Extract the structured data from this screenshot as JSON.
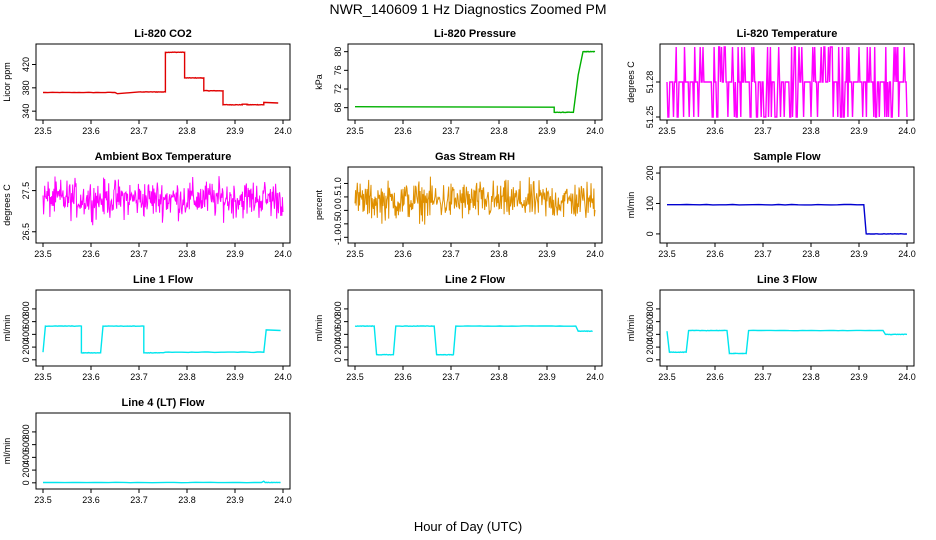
{
  "figure": {
    "title": "NWR_140609  1 Hz Diagnostics Zoomed PM",
    "xlabel": "Hour of Day (UTC)"
  },
  "chart_data": [
    {
      "type": "line",
      "title": "Li-820 CO2",
      "ylabel": "Licor ppm",
      "xlim": [
        23.5,
        24.0
      ],
      "ylim": [
        330,
        450
      ],
      "xticks": [
        23.5,
        23.6,
        23.7,
        23.8,
        23.9,
        24.0
      ],
      "yticks": [
        340,
        380,
        420
      ],
      "color": "#e00000",
      "style": "step",
      "x": [
        23.5,
        23.65,
        23.655,
        23.7,
        23.755,
        23.755,
        23.795,
        23.795,
        23.835,
        23.835,
        23.875,
        23.875,
        23.915,
        23.915,
        23.925,
        23.925,
        23.96,
        23.96,
        23.99
      ],
      "values": [
        372,
        372,
        370,
        373,
        373,
        441,
        441,
        397,
        397,
        375,
        375,
        351,
        351,
        352,
        352,
        351,
        351,
        355,
        354
      ]
    },
    {
      "type": "line",
      "title": "Li-820 Pressure",
      "ylabel": "kPa",
      "xlim": [
        23.5,
        24.0
      ],
      "ylim": [
        66,
        81
      ],
      "xticks": [
        23.5,
        23.6,
        23.7,
        23.8,
        23.9,
        24.0
      ],
      "yticks": [
        68,
        72,
        76,
        80
      ],
      "color": "#00b000",
      "style": "step",
      "x": [
        23.5,
        23.915,
        23.915,
        23.955,
        23.965,
        23.975,
        24.0
      ],
      "values": [
        68.2,
        68.1,
        67.0,
        67.0,
        75.0,
        80.0,
        80.0
      ]
    },
    {
      "type": "line",
      "title": "Li-820 Temperature",
      "ylabel": "degrees C",
      "xlim": [
        23.5,
        24.0
      ],
      "ylim": [
        51.25,
        51.31
      ],
      "xticks": [
        23.5,
        23.6,
        23.7,
        23.8,
        23.9,
        24.0
      ],
      "yticks": [
        51.25,
        51.28
      ],
      "color": "#ff00ff",
      "style": "quantized",
      "levels": [
        51.25,
        51.28,
        51.31
      ],
      "base_level": 51.28
    },
    {
      "type": "line",
      "title": "Ambient Box Temperature",
      "ylabel": "degrees C",
      "xlim": [
        23.5,
        24.0
      ],
      "ylim": [
        26.3,
        28.0
      ],
      "xticks": [
        23.5,
        23.6,
        23.7,
        23.8,
        23.9,
        24.0
      ],
      "yticks": [
        26.5,
        27.5
      ],
      "color": "#ff00ff",
      "style": "noise",
      "mean": 27.3,
      "spread": 0.45
    },
    {
      "type": "line",
      "title": "Gas Stream RH",
      "ylabel": "percent",
      "xlim": [
        23.5,
        24.0
      ],
      "ylim": [
        -1.1,
        1.5
      ],
      "xticks": [
        23.5,
        23.6,
        23.7,
        23.8,
        23.9,
        24.0
      ],
      "yticks": [
        -1.0,
        -0.5,
        0.0,
        0.5,
        1.0
      ],
      "color": "#e09000",
      "style": "noise",
      "mean": 0.35,
      "spread": 0.7
    },
    {
      "type": "line",
      "title": "Sample Flow",
      "ylabel": "ml/min",
      "xlim": [
        23.5,
        24.0
      ],
      "ylim": [
        -20,
        210
      ],
      "xticks": [
        23.5,
        23.6,
        23.7,
        23.8,
        23.9,
        24.0
      ],
      "yticks": [
        0,
        100,
        200
      ],
      "color": "#0000d0",
      "style": "step",
      "x": [
        23.5,
        23.91,
        23.915,
        24.0
      ],
      "values": [
        96,
        96,
        0,
        0
      ]
    },
    {
      "type": "line",
      "title": "Line 1 Flow",
      "ylabel": "ml/min",
      "xlim": [
        23.5,
        24.0
      ],
      "ylim": [
        -50,
        1050
      ],
      "xticks": [
        23.5,
        23.6,
        23.7,
        23.8,
        23.9,
        24.0
      ],
      "yticks": [
        0,
        200,
        400,
        600,
        800
      ],
      "color": "#00e5ee",
      "style": "step",
      "x": [
        23.5,
        23.505,
        23.58,
        23.58,
        23.62,
        23.625,
        23.71,
        23.71,
        23.75,
        23.755,
        23.96,
        23.965,
        23.995
      ],
      "values": [
        120,
        530,
        530,
        110,
        110,
        530,
        530,
        110,
        110,
        120,
        120,
        470,
        460
      ]
    },
    {
      "type": "line",
      "title": "Line 2 Flow",
      "ylabel": "ml/min",
      "xlim": [
        23.5,
        24.0
      ],
      "ylim": [
        -50,
        1050
      ],
      "xticks": [
        23.5,
        23.6,
        23.7,
        23.8,
        23.9,
        24.0
      ],
      "yticks": [
        0,
        200,
        400,
        600,
        800
      ],
      "color": "#00e5ee",
      "style": "step",
      "x": [
        23.5,
        23.54,
        23.545,
        23.58,
        23.585,
        23.665,
        23.67,
        23.705,
        23.71,
        23.96,
        23.965,
        23.995
      ],
      "values": [
        530,
        530,
        80,
        80,
        530,
        530,
        80,
        80,
        530,
        530,
        450,
        450
      ]
    },
    {
      "type": "line",
      "title": "Line 3 Flow",
      "ylabel": "ml/min",
      "xlim": [
        23.5,
        24.0
      ],
      "ylim": [
        -50,
        1050
      ],
      "xticks": [
        23.5,
        23.6,
        23.7,
        23.8,
        23.9,
        24.0
      ],
      "yticks": [
        0,
        200,
        400,
        600,
        800
      ],
      "color": "#00e5ee",
      "style": "step",
      "x": [
        23.5,
        23.505,
        23.54,
        23.545,
        23.625,
        23.63,
        23.665,
        23.67,
        23.95,
        23.955,
        24.0
      ],
      "values": [
        450,
        120,
        120,
        460,
        460,
        100,
        100,
        460,
        460,
        400,
        400
      ]
    },
    {
      "type": "line",
      "title": "Line 4 (LT) Flow",
      "ylabel": "ml/min",
      "xlim": [
        23.5,
        24.0
      ],
      "ylim": [
        -50,
        1050
      ],
      "xticks": [
        23.5,
        23.6,
        23.7,
        23.8,
        23.9,
        24.0
      ],
      "yticks": [
        0,
        200,
        400,
        600,
        800
      ],
      "color": "#00e5ee",
      "style": "step",
      "x": [
        23.5,
        23.955,
        23.96,
        23.963,
        23.995
      ],
      "values": [
        5,
        5,
        25,
        5,
        5
      ]
    }
  ]
}
